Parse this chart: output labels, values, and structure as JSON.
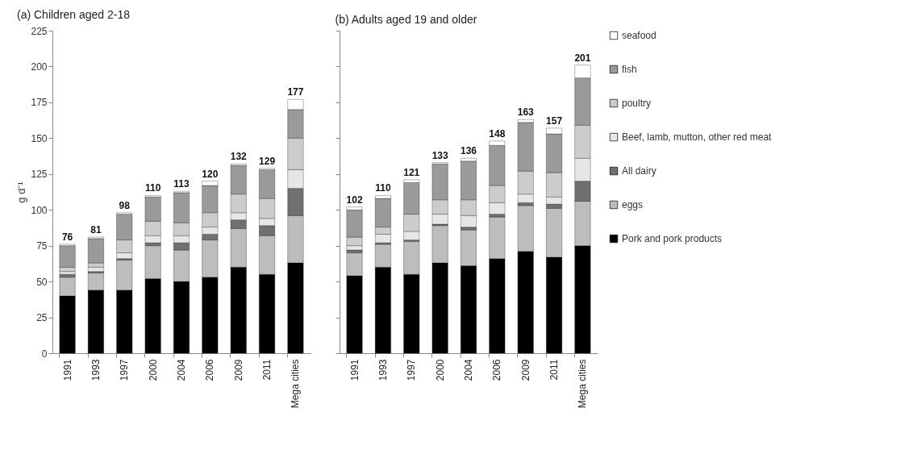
{
  "chart_data": [
    {
      "type": "bar",
      "stacked": true,
      "title": "(a) Children aged 2-18",
      "ylabel": "g d⁻¹",
      "categories": [
        "1991",
        "1993",
        "1997",
        "2000",
        "2004",
        "2006",
        "2009",
        "2011",
        "Mega cities"
      ],
      "ylim": [
        0,
        225
      ],
      "yticks": [
        0,
        25,
        50,
        75,
        100,
        125,
        150,
        175,
        200,
        225
      ],
      "grid": false,
      "legend": "right",
      "totals": [
        "76",
        "81",
        "98",
        "110",
        "113",
        "120",
        "132",
        "129",
        "177"
      ],
      "series": [
        {
          "name": "Pork and pork products",
          "color": "#000000",
          "values": [
            40,
            44,
            44,
            52,
            50,
            53,
            60,
            55,
            63
          ]
        },
        {
          "name": "eggs",
          "color": "#bdbdbd",
          "values": [
            13,
            12,
            21,
            23,
            22,
            26,
            27,
            27,
            33
          ]
        },
        {
          "name": "All dairy",
          "color": "#707070",
          "values": [
            2,
            1,
            1,
            2,
            5,
            4,
            6,
            7,
            19
          ]
        },
        {
          "name": "Beef, lamb, mutton, other red meat",
          "color": "#e6e6e6",
          "values": [
            2,
            3,
            4,
            5,
            5,
            5,
            5,
            5,
            13
          ]
        },
        {
          "name": "poultry",
          "color": "#cccccc",
          "values": [
            3,
            3,
            9,
            10,
            9,
            10,
            13,
            14,
            22
          ]
        },
        {
          "name": "fish",
          "color": "#9a9a9a",
          "values": [
            15,
            17,
            18,
            17,
            21,
            19,
            20,
            20,
            20
          ]
        },
        {
          "name": "seafood",
          "color": "#ffffff",
          "values": [
            1,
            1,
            1,
            1,
            1,
            3,
            1,
            1,
            7
          ]
        }
      ]
    },
    {
      "type": "bar",
      "stacked": true,
      "title": "(b) Adults aged 19 and older",
      "categories": [
        "1991",
        "1993",
        "1997",
        "2000",
        "2004",
        "2006",
        "2009",
        "2011",
        "Mega cities"
      ],
      "ylim": [
        0,
        225
      ],
      "yticks": [
        0,
        25,
        50,
        75,
        100,
        125,
        150,
        175,
        200,
        225
      ],
      "grid": false,
      "legend": "right",
      "tick_labels": "x",
      "totals": [
        "102",
        "110",
        "121",
        "133",
        "136",
        "148",
        "163",
        "157",
        "201"
      ],
      "series": [
        {
          "name": "Pork and pork products",
          "color": "#000000",
          "values": [
            54,
            60,
            55,
            63,
            61,
            66,
            71,
            67,
            75
          ]
        },
        {
          "name": "eggs",
          "color": "#bdbdbd",
          "values": [
            16,
            16,
            23,
            26,
            25,
            29,
            32,
            34,
            31
          ]
        },
        {
          "name": "All dairy",
          "color": "#707070",
          "values": [
            2,
            1,
            1,
            1,
            2,
            2,
            2,
            3,
            14
          ]
        },
        {
          "name": "Beef, lamb, mutton, other red meat",
          "color": "#e6e6e6",
          "values": [
            3,
            6,
            6,
            7,
            8,
            8,
            6,
            5,
            16
          ]
        },
        {
          "name": "poultry",
          "color": "#cccccc",
          "values": [
            6,
            5,
            12,
            10,
            11,
            12,
            16,
            17,
            23
          ]
        },
        {
          "name": "fish",
          "color": "#9a9a9a",
          "values": [
            19,
            20,
            22,
            25,
            27,
            28,
            34,
            27,
            33
          ]
        },
        {
          "name": "seafood",
          "color": "#ffffff",
          "values": [
            2,
            2,
            2,
            1,
            2,
            3,
            2,
            4,
            9
          ]
        }
      ]
    }
  ]
}
